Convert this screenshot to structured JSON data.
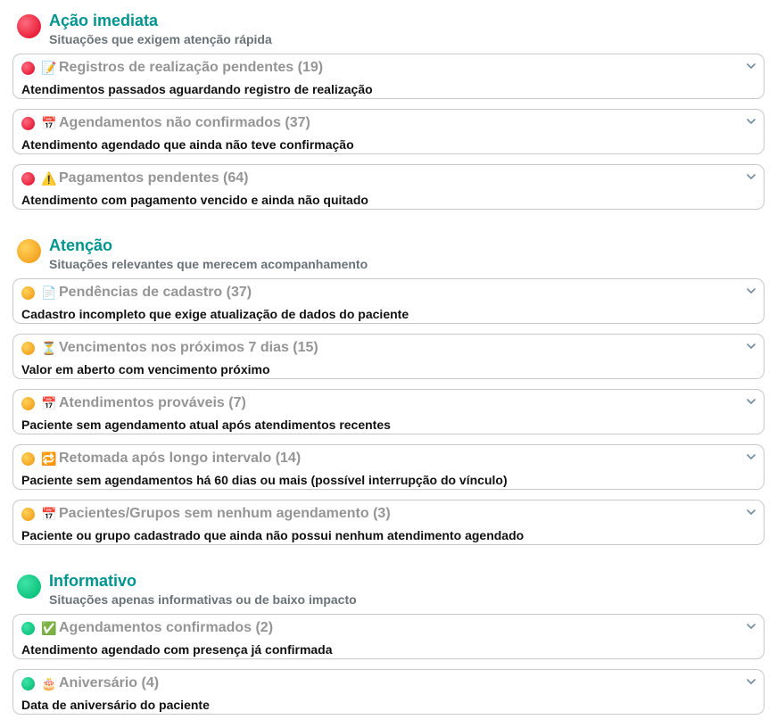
{
  "colors": {
    "title": "#00948f",
    "red": "#e8213c",
    "yellow": "#f5a623",
    "green": "#10c47f"
  },
  "sections": [
    {
      "level": "red",
      "title": "Ação imediata",
      "subtitle": "Situações que exigem atenção rápida",
      "items": [
        {
          "icon": "memo-icon",
          "emoji": "📝",
          "title": "Registros de realização pendentes (19)",
          "desc": "Atendimentos passados aguardando registro de realização"
        },
        {
          "icon": "calendar-icon",
          "emoji": "📅",
          "title": "Agendamentos não confirmados (37)",
          "desc": "Atendimento agendado que ainda não teve confirmação"
        },
        {
          "icon": "warning-icon",
          "emoji": "⚠️",
          "title": "Pagamentos pendentes (64)",
          "desc": "Atendimento com pagamento vencido e ainda não quitado"
        }
      ]
    },
    {
      "level": "yellow",
      "title": "Atenção",
      "subtitle": "Situações relevantes que merecem acompanhamento",
      "items": [
        {
          "icon": "document-icon",
          "emoji": "📄",
          "title": "Pendências de cadastro (37)",
          "desc": "Cadastro incompleto que exige atualização de dados do paciente"
        },
        {
          "icon": "hourglass-icon",
          "emoji": "⏳",
          "title": "Vencimentos nos próximos 7 dias (15)",
          "desc": "Valor em aberto com vencimento próximo"
        },
        {
          "icon": "calendar-icon",
          "emoji": "📅",
          "title": "Atendimentos prováveis (7)",
          "desc": "Paciente sem agendamento atual após atendimentos recentes"
        },
        {
          "icon": "repeat-icon",
          "emoji": "🔁",
          "title": "Retomada após longo intervalo (14)",
          "desc": "Paciente sem agendamentos há 60 dias ou mais (possível interrupção do vínculo)"
        },
        {
          "icon": "calendar-icon",
          "emoji": "📅",
          "title": "Pacientes/Grupos sem nenhum agendamento (3)",
          "desc": "Paciente ou grupo cadastrado que ainda não possui nenhum atendimento agendado"
        }
      ]
    },
    {
      "level": "green",
      "title": "Informativo",
      "subtitle": "Situações apenas informativas ou de baixo impacto",
      "items": [
        {
          "icon": "check-box-icon",
          "emoji": "✅",
          "title": "Agendamentos confirmados (2)",
          "desc": "Atendimento agendado com presença já confirmada"
        },
        {
          "icon": "birthday-cake-icon",
          "emoji": "🎂",
          "title": "Aniversário (4)",
          "desc": "Data de aniversário do paciente"
        }
      ]
    }
  ]
}
